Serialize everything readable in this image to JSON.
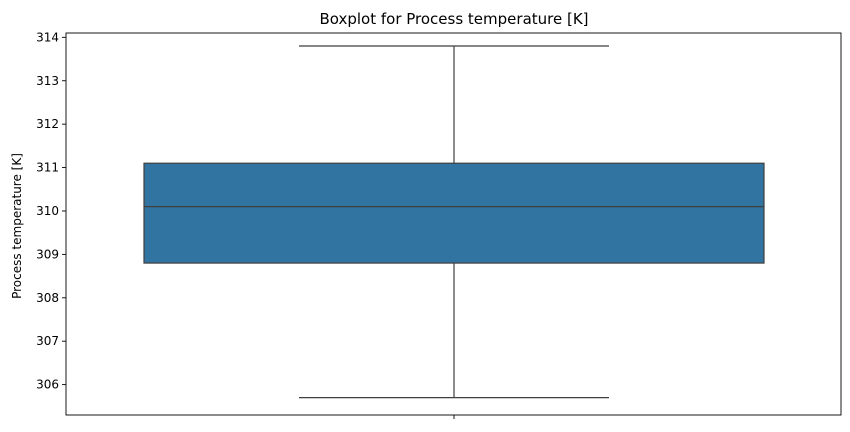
{
  "chart_data": {
    "type": "boxplot",
    "title": "Boxplot for Process temperature [K]",
    "xlabel": "",
    "ylabel": "Process temperature [K]",
    "ylim": [
      305.3,
      314.1
    ],
    "y_ticks": [
      306,
      307,
      308,
      309,
      310,
      311,
      312,
      313,
      314
    ],
    "x_ticks": [
      ""
    ],
    "grid": false,
    "box": {
      "whisker_low": 305.7,
      "q1": 308.8,
      "median": 310.1,
      "q3": 311.1,
      "whisker_high": 313.8
    },
    "colors": {
      "box_fill": "#3274a1",
      "line": "#3f3f3f",
      "axes": "#000000"
    }
  }
}
